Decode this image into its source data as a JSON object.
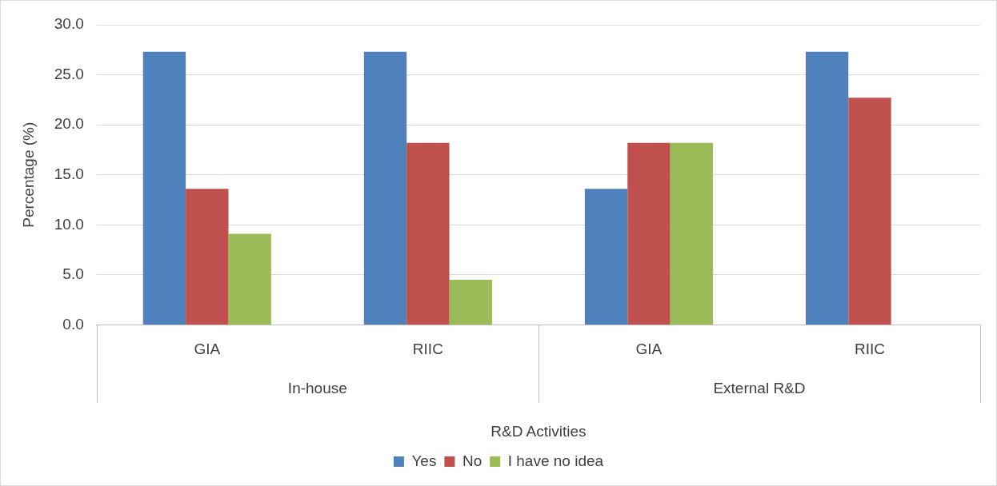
{
  "chart_data": {
    "type": "bar",
    "xlabel": "R&D Activities",
    "ylabel": "Percentage (%)",
    "categories": [
      "GIA",
      "RIIC",
      "GIA",
      "RIIC"
    ],
    "annotations": [
      "In-house",
      "External R&D"
    ],
    "series": [
      {
        "name": "Yes",
        "color": "#4f81bd",
        "values": [
          27.3,
          27.3,
          13.6,
          27.3
        ]
      },
      {
        "name": "No",
        "color": "#c0504d",
        "values": [
          13.6,
          18.2,
          18.2,
          22.7
        ]
      },
      {
        "name": "I have no idea",
        "color": "#9bbb59",
        "values": [
          9.1,
          4.5,
          18.2,
          0
        ]
      }
    ],
    "ylim": [
      0,
      30
    ],
    "yticks": [
      {
        "value": 0,
        "label": "0.0"
      },
      {
        "value": 5,
        "label": "5.0"
      },
      {
        "value": 10,
        "label": "10.0"
      },
      {
        "value": 15,
        "label": "15.0"
      },
      {
        "value": 20,
        "label": "20.0"
      },
      {
        "value": 25,
        "label": "25.0"
      },
      {
        "value": 30,
        "label": "30.0"
      }
    ],
    "grid": "y",
    "legend": "bottom"
  }
}
